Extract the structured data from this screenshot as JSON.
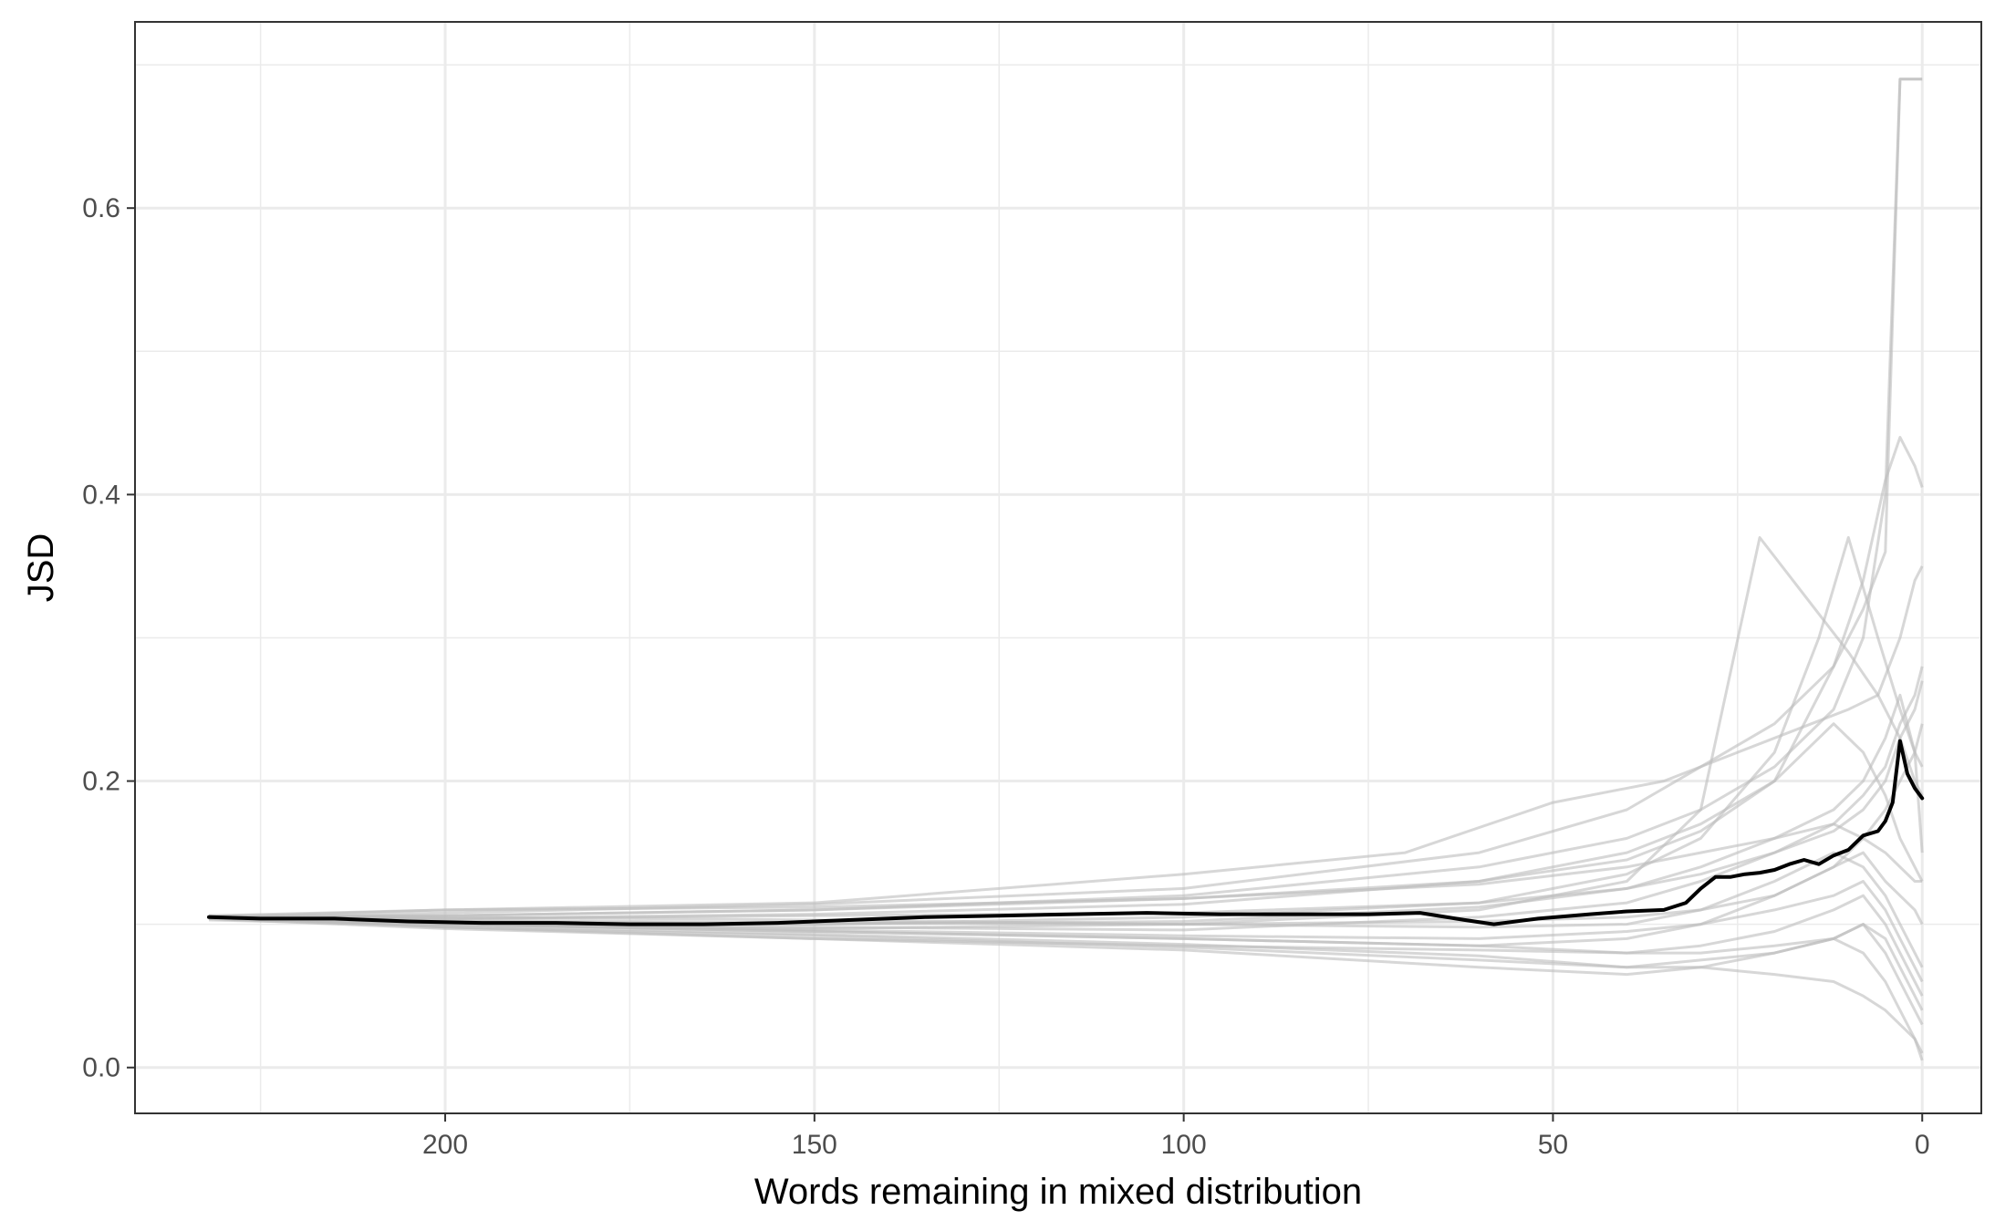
{
  "chart_data": {
    "type": "line",
    "title": "",
    "xlabel": "Words remaining in mixed distribution",
    "ylabel": "JSD",
    "x_reversed": true,
    "xlim": [
      242,
      -8
    ],
    "ylim": [
      -0.032,
      0.73
    ],
    "x_ticks": [
      200,
      150,
      100,
      50,
      0
    ],
    "x_tick_labels": [
      "200",
      "150",
      "100",
      "50",
      "0"
    ],
    "x_minor_ticks": [
      225,
      175,
      125,
      75,
      25
    ],
    "y_ticks": [
      0.0,
      0.2,
      0.4,
      0.6
    ],
    "y_tick_labels": [
      "0.0",
      "0.2",
      "0.4",
      "0.6"
    ],
    "y_minor_ticks": [
      0.1,
      0.3,
      0.5,
      0.7
    ],
    "grid": true,
    "colors": {
      "mean_line": "#000000",
      "runs": "#bdbdbd",
      "grid": "#ebebeb",
      "panel_border": "#333333"
    },
    "mean_series": {
      "x": [
        232,
        225,
        215,
        205,
        195,
        185,
        175,
        165,
        155,
        145,
        135,
        125,
        115,
        105,
        95,
        85,
        75,
        68,
        62,
        58,
        52,
        45,
        40,
        35,
        32,
        30,
        28,
        26,
        24,
        22,
        20,
        18,
        16,
        14,
        12,
        10,
        8,
        6,
        5,
        4,
        3,
        2,
        1,
        0
      ],
      "y": [
        0.105,
        0.104,
        0.104,
        0.102,
        0.101,
        0.101,
        0.1,
        0.1,
        0.101,
        0.103,
        0.105,
        0.106,
        0.107,
        0.108,
        0.107,
        0.107,
        0.107,
        0.108,
        0.103,
        0.1,
        0.104,
        0.107,
        0.109,
        0.11,
        0.115,
        0.125,
        0.133,
        0.133,
        0.135,
        0.136,
        0.138,
        0.142,
        0.145,
        0.142,
        0.148,
        0.152,
        0.162,
        0.165,
        0.172,
        0.185,
        0.228,
        0.205,
        0.195,
        0.188
      ]
    },
    "run_series": [
      {
        "x": [
          232,
          200,
          150,
          100,
          60,
          40,
          30,
          20,
          12,
          8,
          5,
          3,
          1,
          0
        ],
        "y": [
          0.104,
          0.108,
          0.114,
          0.125,
          0.15,
          0.18,
          0.21,
          0.24,
          0.28,
          0.32,
          0.36,
          0.69,
          0.69,
          0.69
        ]
      },
      {
        "x": [
          232,
          200,
          150,
          100,
          60,
          40,
          30,
          20,
          12,
          8,
          5,
          3,
          2,
          0
        ],
        "y": [
          0.106,
          0.106,
          0.11,
          0.12,
          0.14,
          0.16,
          0.18,
          0.21,
          0.25,
          0.3,
          0.4,
          0.69,
          0.69,
          0.69
        ]
      },
      {
        "x": [
          232,
          200,
          150,
          100,
          60,
          40,
          30,
          20,
          12,
          8,
          5,
          3,
          1,
          0
        ],
        "y": [
          0.105,
          0.104,
          0.107,
          0.114,
          0.13,
          0.145,
          0.165,
          0.2,
          0.28,
          0.34,
          0.41,
          0.44,
          0.42,
          0.405
        ]
      },
      {
        "x": [
          232,
          200,
          150,
          100,
          60,
          40,
          30,
          20,
          14,
          10,
          6,
          3,
          1,
          0
        ],
        "y": [
          0.105,
          0.102,
          0.1,
          0.105,
          0.115,
          0.135,
          0.16,
          0.22,
          0.3,
          0.37,
          0.3,
          0.25,
          0.22,
          0.21
        ]
      },
      {
        "x": [
          232,
          200,
          150,
          100,
          60,
          40,
          30,
          22,
          16,
          10,
          6,
          3,
          1,
          0
        ],
        "y": [
          0.104,
          0.1,
          0.097,
          0.1,
          0.11,
          0.13,
          0.18,
          0.37,
          0.33,
          0.29,
          0.26,
          0.23,
          0.2,
          0.19
        ]
      },
      {
        "x": [
          232,
          200,
          150,
          100,
          70,
          50,
          35,
          25,
          15,
          10,
          6,
          3,
          1,
          0
        ],
        "y": [
          0.105,
          0.11,
          0.115,
          0.135,
          0.15,
          0.185,
          0.2,
          0.22,
          0.24,
          0.25,
          0.26,
          0.3,
          0.34,
          0.35
        ]
      },
      {
        "x": [
          232,
          200,
          150,
          100,
          60,
          40,
          30,
          20,
          12,
          8,
          5,
          3,
          1,
          0
        ],
        "y": [
          0.106,
          0.11,
          0.112,
          0.118,
          0.13,
          0.15,
          0.17,
          0.2,
          0.24,
          0.22,
          0.19,
          0.16,
          0.14,
          0.13
        ]
      },
      {
        "x": [
          232,
          200,
          150,
          100,
          60,
          40,
          30,
          20,
          12,
          8,
          5,
          3,
          1,
          0
        ],
        "y": [
          0.104,
          0.102,
          0.1,
          0.102,
          0.112,
          0.125,
          0.14,
          0.16,
          0.18,
          0.2,
          0.23,
          0.26,
          0.22,
          0.15
        ]
      },
      {
        "x": [
          232,
          200,
          150,
          100,
          60,
          40,
          30,
          20,
          12,
          8,
          5,
          3,
          1,
          0
        ],
        "y": [
          0.105,
          0.101,
          0.098,
          0.096,
          0.105,
          0.115,
          0.13,
          0.15,
          0.17,
          0.19,
          0.21,
          0.24,
          0.26,
          0.28
        ]
      },
      {
        "x": [
          232,
          200,
          150,
          100,
          60,
          40,
          30,
          20,
          12,
          8,
          5,
          3,
          1,
          0
        ],
        "y": [
          0.104,
          0.1,
          0.095,
          0.09,
          0.085,
          0.08,
          0.08,
          0.085,
          0.09,
          0.08,
          0.06,
          0.04,
          0.02,
          0.01
        ]
      },
      {
        "x": [
          232,
          200,
          150,
          100,
          60,
          40,
          30,
          20,
          12,
          8,
          5,
          3,
          1,
          0
        ],
        "y": [
          0.103,
          0.099,
          0.093,
          0.086,
          0.078,
          0.07,
          0.07,
          0.065,
          0.06,
          0.05,
          0.04,
          0.03,
          0.02,
          0.005
        ]
      },
      {
        "x": [
          232,
          200,
          150,
          100,
          60,
          40,
          30,
          20,
          12,
          8,
          5,
          3,
          1,
          0
        ],
        "y": [
          0.105,
          0.098,
          0.092,
          0.084,
          0.075,
          0.07,
          0.075,
          0.08,
          0.09,
          0.1,
          0.08,
          0.06,
          0.04,
          0.03
        ]
      },
      {
        "x": [
          232,
          200,
          150,
          100,
          60,
          40,
          30,
          20,
          12,
          8,
          5,
          3,
          1,
          0
        ],
        "y": [
          0.104,
          0.097,
          0.09,
          0.085,
          0.082,
          0.08,
          0.085,
          0.095,
          0.11,
          0.12,
          0.1,
          0.08,
          0.06,
          0.05
        ]
      },
      {
        "x": [
          232,
          200,
          150,
          100,
          60,
          40,
          30,
          20,
          12,
          8,
          5,
          3,
          1,
          0
        ],
        "y": [
          0.105,
          0.1,
          0.096,
          0.092,
          0.09,
          0.095,
          0.1,
          0.11,
          0.12,
          0.13,
          0.11,
          0.09,
          0.07,
          0.06
        ]
      },
      {
        "x": [
          232,
          200,
          150,
          100,
          60,
          40,
          30,
          20,
          12,
          8,
          5,
          3,
          1,
          0
        ],
        "y": [
          0.106,
          0.098,
          0.09,
          0.082,
          0.07,
          0.065,
          0.07,
          0.08,
          0.09,
          0.1,
          0.09,
          0.07,
          0.05,
          0.04
        ]
      },
      {
        "x": [
          232,
          200,
          150,
          100,
          60,
          40,
          30,
          20,
          12,
          8,
          5,
          3,
          1,
          0
        ],
        "y": [
          0.104,
          0.1,
          0.095,
          0.09,
          0.085,
          0.09,
          0.1,
          0.12,
          0.14,
          0.15,
          0.13,
          0.12,
          0.11,
          0.1
        ]
      },
      {
        "x": [
          232,
          200,
          150,
          100,
          60,
          40,
          30,
          20,
          12,
          8,
          5,
          3,
          1,
          0
        ],
        "y": [
          0.105,
          0.105,
          0.103,
          0.1,
          0.102,
          0.105,
          0.11,
          0.12,
          0.14,
          0.16,
          0.18,
          0.2,
          0.22,
          0.24
        ]
      },
      {
        "x": [
          232,
          200,
          150,
          100,
          60,
          40,
          30,
          20,
          12,
          8,
          5,
          3,
          1,
          0
        ],
        "y": [
          0.105,
          0.103,
          0.101,
          0.1,
          0.098,
          0.1,
          0.11,
          0.13,
          0.15,
          0.14,
          0.12,
          0.1,
          0.08,
          0.07
        ]
      },
      {
        "x": [
          232,
          200,
          150,
          100,
          60,
          40,
          30,
          20,
          12,
          8,
          5,
          3,
          1,
          0
        ],
        "y": [
          0.104,
          0.106,
          0.11,
          0.118,
          0.128,
          0.14,
          0.15,
          0.16,
          0.17,
          0.16,
          0.15,
          0.14,
          0.13,
          0.13
        ]
      },
      {
        "x": [
          232,
          200,
          150,
          100,
          60,
          40,
          30,
          20,
          12,
          8,
          5,
          3,
          1,
          0
        ],
        "y": [
          0.105,
          0.104,
          0.106,
          0.108,
          0.115,
          0.125,
          0.135,
          0.15,
          0.165,
          0.18,
          0.2,
          0.23,
          0.25,
          0.27
        ]
      }
    ]
  }
}
